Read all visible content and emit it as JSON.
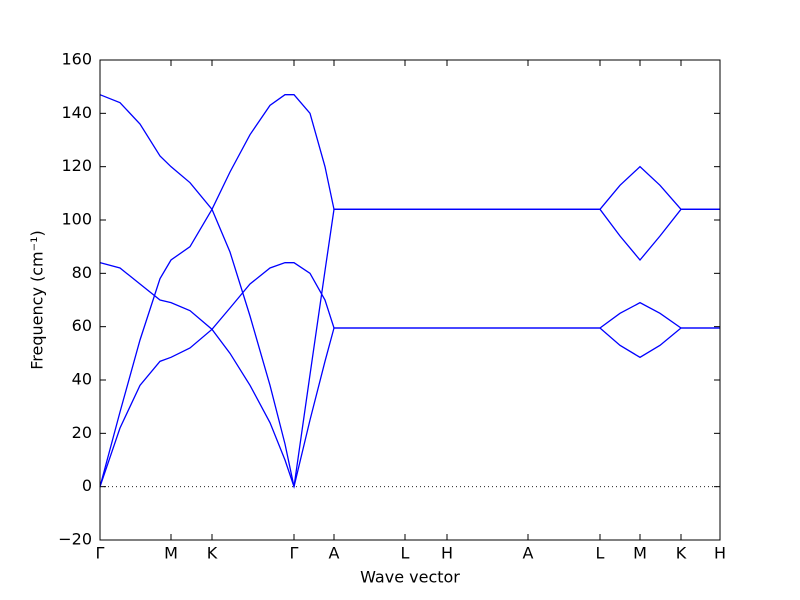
{
  "chart_data": {
    "type": "line",
    "xlabel": "Wave vector",
    "ylabel": "Frequency (cm⁻¹)",
    "x": [
      0,
      0.2,
      0.4,
      0.6,
      0.71,
      0.9,
      1.12,
      1.3,
      1.5,
      1.7,
      1.85,
      1.94,
      2.1,
      2.25,
      2.34,
      3.05,
      3.47,
      4.28,
      5.0,
      5.2,
      5.4,
      5.6,
      5.81,
      6.2
    ],
    "series": [
      {
        "color": "#0000ff",
        "values": [
          147,
          144,
          136,
          124,
          120,
          114,
          104,
          88,
          64,
          38,
          16,
          0,
          42,
          81,
          104,
          104,
          104,
          104,
          104,
          113,
          120,
          113,
          104,
          104
        ]
      },
      {
        "color": "#0000ff",
        "values": [
          0,
          28,
          55,
          78,
          85,
          90,
          104,
          118,
          132,
          143,
          147,
          147,
          140,
          120,
          104,
          104,
          104,
          104,
          104,
          94,
          85,
          94,
          104,
          104
        ]
      },
      {
        "color": "#0000ff",
        "values": [
          84,
          82,
          76,
          70,
          69,
          66,
          59,
          50,
          38,
          24,
          10,
          0,
          25,
          47,
          59.5,
          59.5,
          59.5,
          59.5,
          59.5,
          65,
          69,
          65,
          59.5,
          59.5
        ]
      },
      {
        "color": "#0000ff",
        "values": [
          0,
          22,
          38,
          47,
          48.5,
          52,
          59,
          67,
          76,
          82,
          84,
          84,
          80,
          70,
          59.5,
          59.5,
          59.5,
          59.5,
          59.5,
          53,
          48.5,
          53,
          59.5,
          59.5
        ]
      }
    ],
    "xlim": [
      0,
      6.2
    ],
    "xticks": [
      {
        "value": 0,
        "label": "Γ"
      },
      {
        "value": 0.71,
        "label": "M"
      },
      {
        "value": 1.12,
        "label": "K"
      },
      {
        "value": 1.94,
        "label": "Γ"
      },
      {
        "value": 2.34,
        "label": "A"
      },
      {
        "value": 3.05,
        "label": "L"
      },
      {
        "value": 3.47,
        "label": "H"
      },
      {
        "value": 4.28,
        "label": "A"
      },
      {
        "value": 5.0,
        "label": "L"
      },
      {
        "value": 5.4,
        "label": "M"
      },
      {
        "value": 5.81,
        "label": "K"
      },
      {
        "value": 6.2,
        "label": "H"
      }
    ],
    "ylim": [
      -20,
      160
    ],
    "yticks": [
      {
        "value": -20,
        "label": "−20"
      },
      0,
      20,
      40,
      60,
      80,
      100,
      120,
      140,
      160
    ],
    "zero_line": true
  }
}
